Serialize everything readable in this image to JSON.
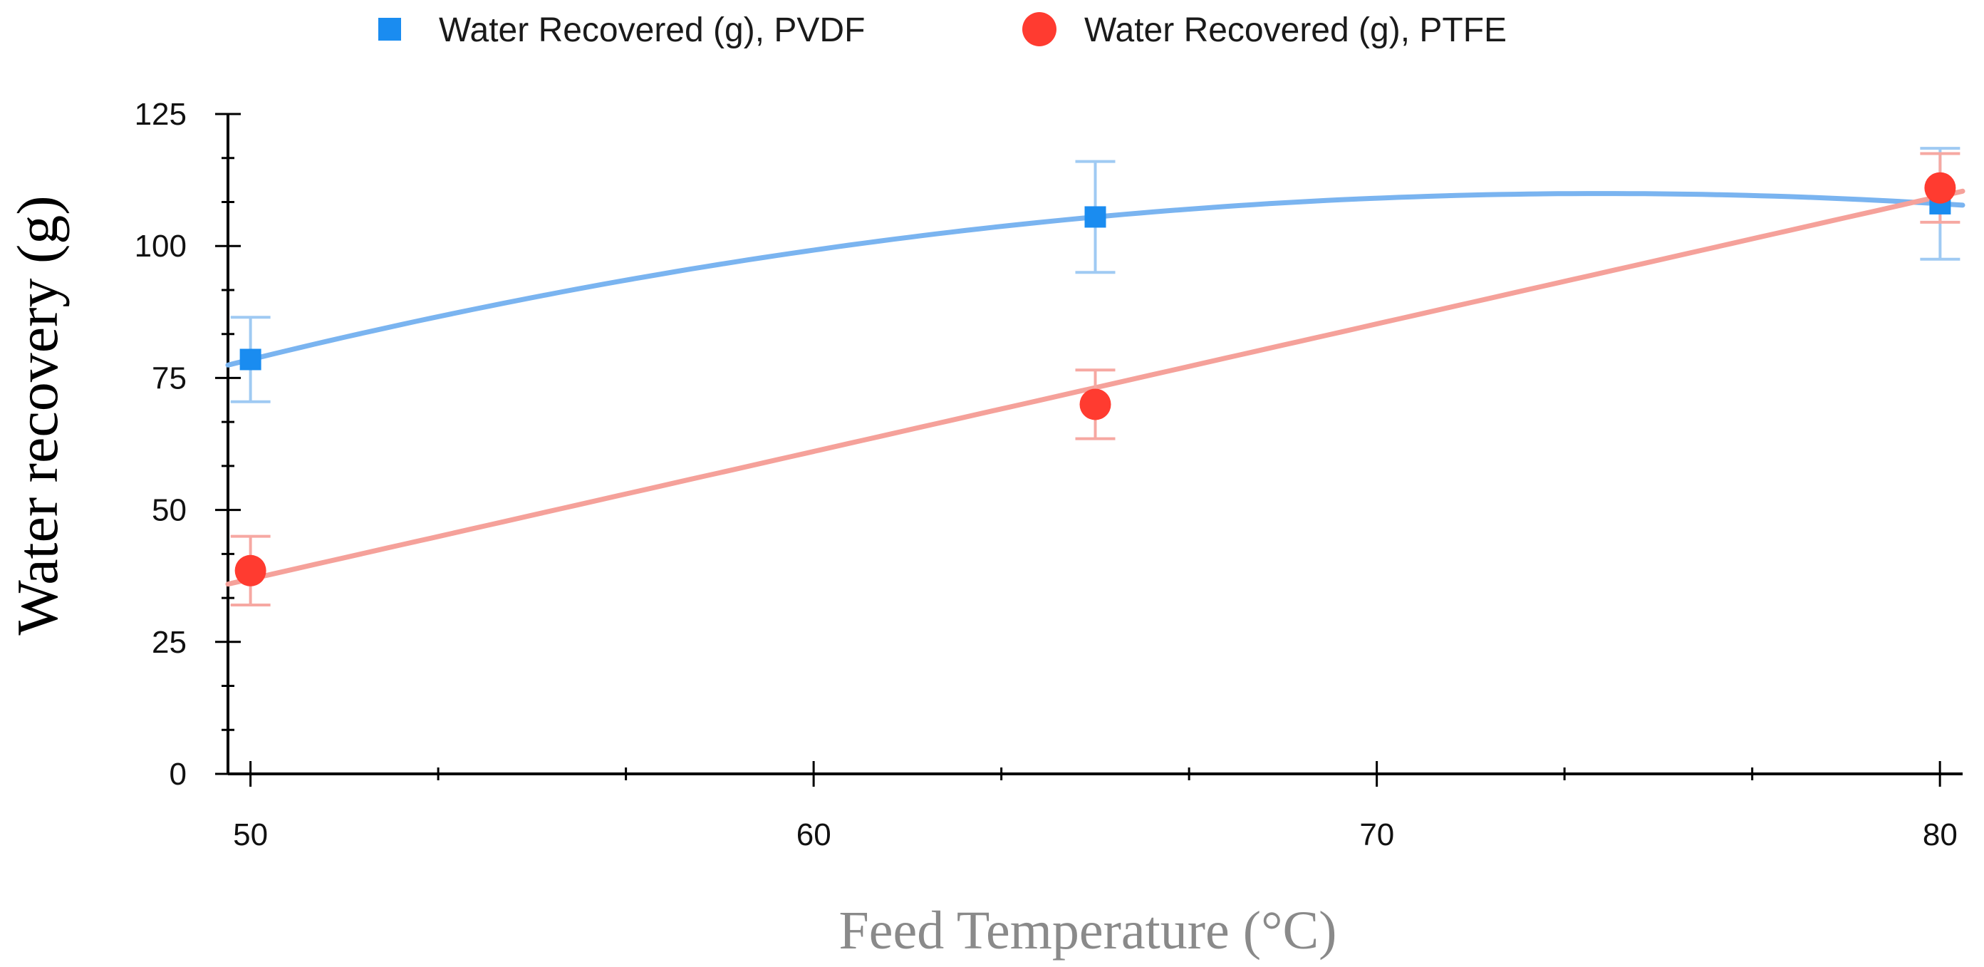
{
  "chart_data": {
    "type": "scatter",
    "xlabel": "Feed Temperature (°C)",
    "ylabel": "Water recovery (g)",
    "xlim": [
      49.6,
      80.4
    ],
    "ylim": [
      0,
      125
    ],
    "x_ticks": [
      50,
      60,
      70,
      80
    ],
    "x_tick_labels": [
      "50",
      "60",
      "70",
      "80"
    ],
    "x_minor_step": 3.333,
    "y_ticks": [
      0,
      25,
      50,
      75,
      100,
      125
    ],
    "y_tick_labels": [
      "0",
      "25",
      "50",
      "75",
      "100",
      "125"
    ],
    "y_minor_step": 8.333,
    "grid": false,
    "legend_position": "top-center",
    "series": [
      {
        "name": "Water Recovered (g), PVDF",
        "marker": "square",
        "color": "#1a8cf0",
        "line_color": "#7ab4f0",
        "errorbar_color": "#9fcaf3",
        "trendline": "quadratic",
        "x": [
          50,
          65,
          80
        ],
        "y": [
          78.5,
          105.5,
          108
        ],
        "err": [
          8,
          10.5,
          10.5
        ]
      },
      {
        "name": "Water Recovered (g), PTFE",
        "marker": "circle",
        "color": "#ff3b30",
        "line_color": "#f5a19a",
        "errorbar_color": "#f6a8a2",
        "trendline": "linear",
        "x": [
          50,
          65,
          80
        ],
        "y": [
          38.5,
          70,
          111
        ],
        "err": [
          6.5,
          6.5,
          6.5
        ]
      }
    ]
  }
}
